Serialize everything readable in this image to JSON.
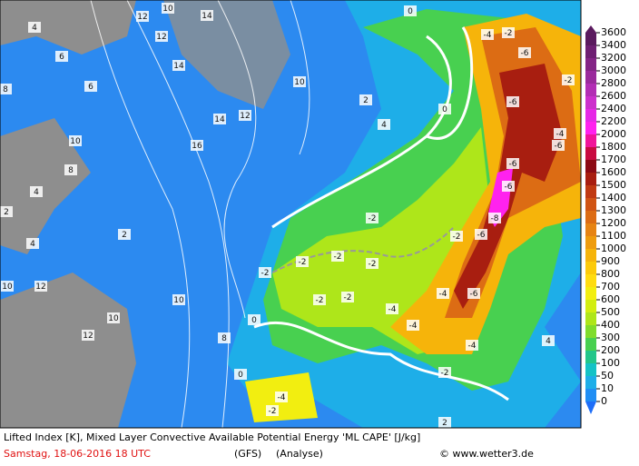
{
  "map": {
    "labels": [
      12,
      10,
      14,
      12,
      14,
      4,
      6,
      6,
      8,
      10,
      8,
      4,
      2,
      4,
      2,
      10,
      12,
      10,
      12,
      10,
      16,
      14,
      12,
      10,
      2,
      4,
      -2,
      -2,
      -2,
      -2,
      -2,
      -2,
      -2,
      -4,
      -4,
      -6,
      -4,
      -2,
      -6,
      -8,
      -6,
      -6,
      -4,
      -6,
      -6,
      -6,
      -4,
      -2,
      -2,
      -4,
      -2,
      0,
      0,
      0,
      0,
      2,
      4,
      -4,
      -2,
      8
    ]
  },
  "legend": {
    "levels": [
      {
        "value": 3600,
        "color": "#5a1a5e"
      },
      {
        "value": 3400,
        "color": "#6e1f72"
      },
      {
        "value": 3200,
        "color": "#842486"
      },
      {
        "value": 3000,
        "color": "#9a2a9c"
      },
      {
        "value": 2800,
        "color": "#b22eb4"
      },
      {
        "value": 2600,
        "color": "#cc30cc"
      },
      {
        "value": 2400,
        "color": "#e628e6"
      },
      {
        "value": 2200,
        "color": "#ff22ee"
      },
      {
        "value": 2000,
        "color": "#f0149a"
      },
      {
        "value": 1800,
        "color": "#c80a40"
      },
      {
        "value": 1700,
        "color": "#8c0a14"
      },
      {
        "value": 1600,
        "color": "#a81e10"
      },
      {
        "value": 1500,
        "color": "#c03a12"
      },
      {
        "value": 1400,
        "color": "#d05414"
      },
      {
        "value": 1300,
        "color": "#dc6c14"
      },
      {
        "value": 1200,
        "color": "#e68414"
      },
      {
        "value": 1100,
        "color": "#ee9c0e"
      },
      {
        "value": 1000,
        "color": "#f6b40a"
      },
      {
        "value": 900,
        "color": "#fcca0a"
      },
      {
        "value": 800,
        "color": "#ffdc10"
      },
      {
        "value": 700,
        "color": "#f2ee10"
      },
      {
        "value": 600,
        "color": "#d2ee10"
      },
      {
        "value": 500,
        "color": "#aee61a"
      },
      {
        "value": 400,
        "color": "#80dc2c"
      },
      {
        "value": 300,
        "color": "#48d050"
      },
      {
        "value": 200,
        "color": "#22c68a"
      },
      {
        "value": 100,
        "color": "#14c2c6"
      },
      {
        "value": 50,
        "color": "#1eaee8"
      },
      {
        "value": 10,
        "color": "#208ef4"
      },
      {
        "value": 0,
        "color": "#1e6ef8"
      }
    ]
  },
  "footer": {
    "description": "Lifted Index [K], Mixed Layer Convective Available Potential Energy 'ML CAPE' [J/kg]",
    "date": "Samstag, 18-06-2016  18 UTC",
    "model": "(GFS)",
    "run": "(Analyse)",
    "credit": "© www.wetter3.de"
  }
}
